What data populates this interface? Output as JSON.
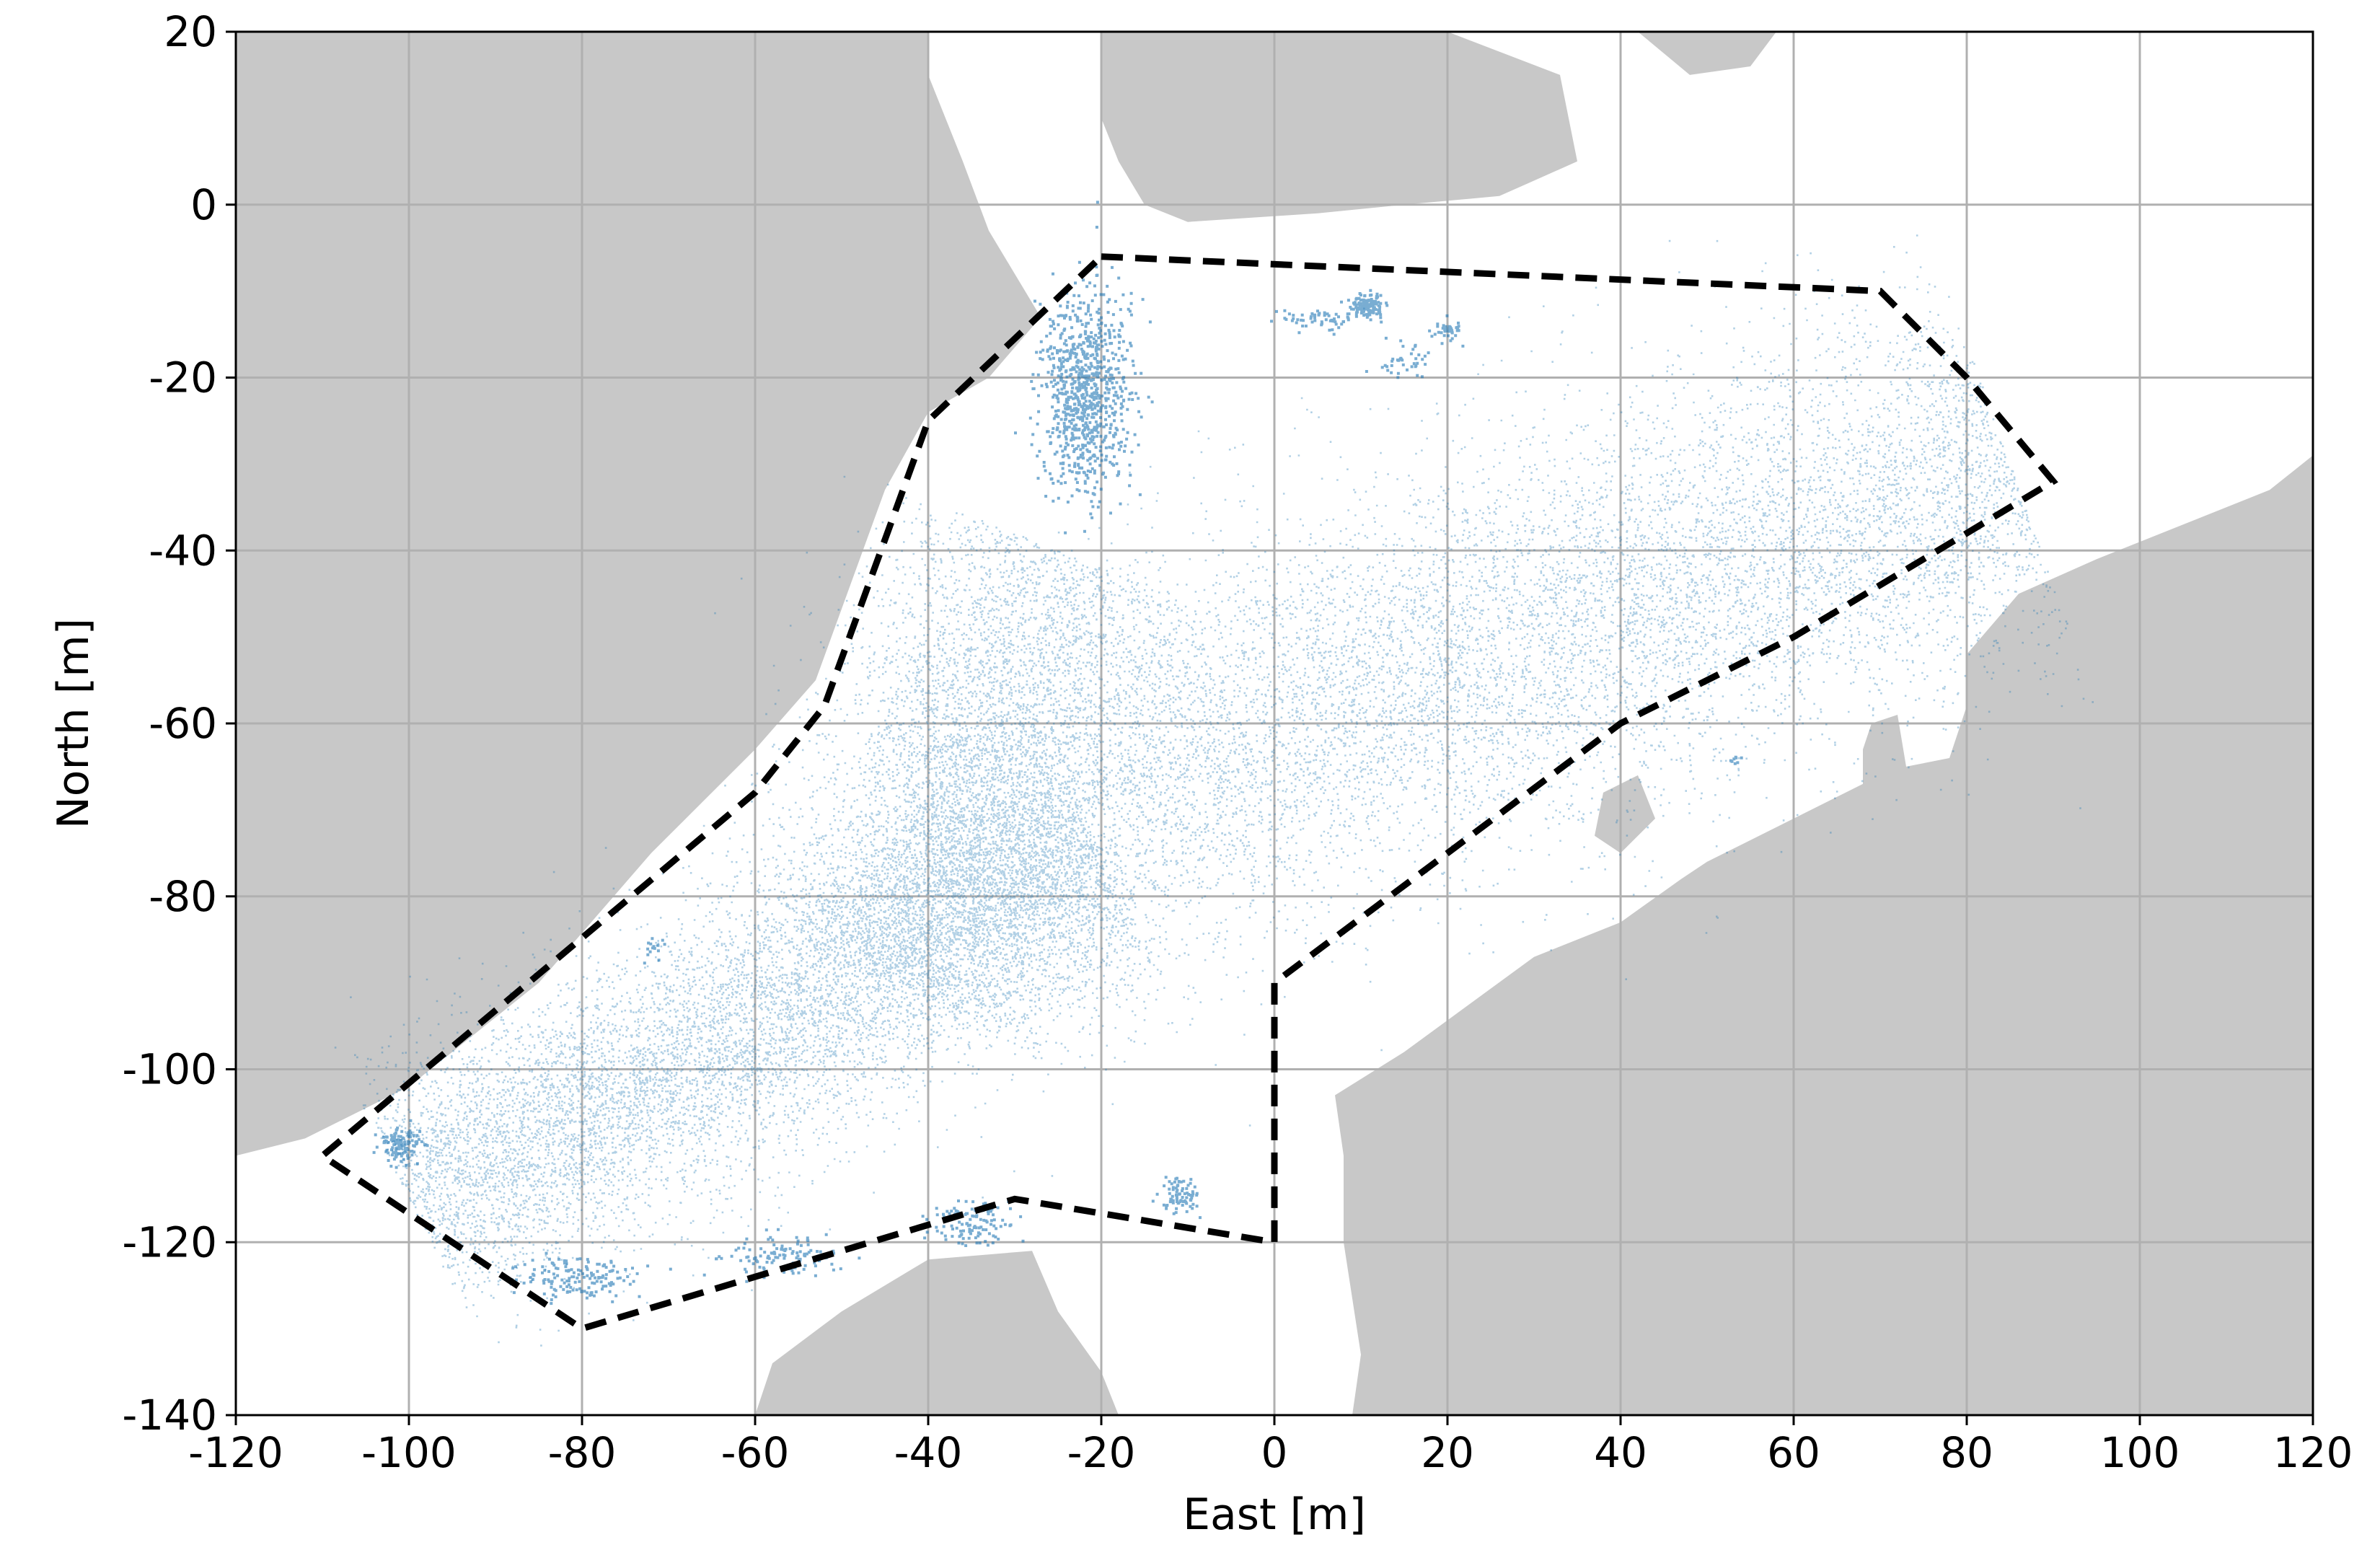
{
  "chart_data": {
    "type": "scatter",
    "xlabel": "East [m]",
    "ylabel": "North [m]",
    "xlim": [
      -120,
      120
    ],
    "ylim": [
      -140,
      20
    ],
    "xticks": [
      -120,
      -100,
      -80,
      -60,
      -40,
      -20,
      0,
      20,
      40,
      60,
      80,
      100,
      120
    ],
    "yticks": [
      20,
      0,
      -20,
      -40,
      -60,
      -80,
      -100,
      -120,
      -140
    ],
    "grid": true,
    "colors": {
      "points": "#1f77b4",
      "land": "#c8c8c8",
      "boundary": "#000000",
      "grid": "#b0b0b0"
    },
    "boundary_polygon": [
      [
        -20,
        -6
      ],
      [
        70,
        -10
      ],
      [
        80,
        -20
      ],
      [
        90,
        -32
      ],
      [
        60,
        -50
      ],
      [
        40,
        -60
      ],
      [
        0,
        -90
      ],
      [
        0,
        -120
      ],
      [
        -30,
        -115
      ],
      [
        -80,
        -130
      ],
      [
        -110,
        -110
      ],
      [
        -60,
        -68
      ],
      [
        -52,
        -58
      ],
      [
        -40,
        -25
      ],
      [
        -20,
        -6
      ]
    ],
    "land_regions": [
      {
        "name": "west-land",
        "points": [
          [
            -120,
            20
          ],
          [
            -40,
            20
          ],
          [
            -40,
            15
          ],
          [
            -36,
            5
          ],
          [
            -33,
            -3
          ],
          [
            -30,
            -8
          ],
          [
            -27,
            -13
          ],
          [
            -33,
            -20
          ],
          [
            -40,
            -24
          ],
          [
            -45,
            -33
          ],
          [
            -53,
            -55
          ],
          [
            -60,
            -63
          ],
          [
            -72,
            -75
          ],
          [
            -85,
            -90
          ],
          [
            -100,
            -102
          ],
          [
            -112,
            -108
          ],
          [
            -120,
            -110
          ]
        ]
      },
      {
        "name": "north-land",
        "points": [
          [
            -20,
            20
          ],
          [
            20,
            20
          ],
          [
            33,
            15
          ],
          [
            35,
            5
          ],
          [
            26,
            1
          ],
          [
            15,
            0
          ],
          [
            5,
            -1
          ],
          [
            -10,
            -2
          ],
          [
            -15,
            0
          ],
          [
            -18,
            5
          ],
          [
            -20,
            10
          ]
        ]
      },
      {
        "name": "north-east-land",
        "points": [
          [
            42,
            20
          ],
          [
            58,
            20
          ],
          [
            55,
            16
          ],
          [
            48,
            15
          ]
        ]
      },
      {
        "name": "east-land",
        "points": [
          [
            120,
            -29
          ],
          [
            120,
            -140
          ],
          [
            9,
            -140
          ],
          [
            10,
            -133
          ],
          [
            8,
            -120
          ],
          [
            8,
            -110
          ],
          [
            7,
            -103
          ],
          [
            15,
            -98
          ],
          [
            30,
            -87
          ],
          [
            40,
            -83
          ],
          [
            47,
            -78
          ],
          [
            50,
            -76
          ],
          [
            60,
            -71
          ],
          [
            68,
            -67
          ],
          [
            68,
            -63
          ],
          [
            69,
            -60
          ],
          [
            72,
            -59
          ],
          [
            73,
            -65
          ],
          [
            78,
            -64
          ],
          [
            80,
            -58
          ],
          [
            80,
            -52
          ],
          [
            86,
            -45
          ],
          [
            95,
            -41
          ],
          [
            105,
            -37
          ],
          [
            115,
            -33
          ]
        ]
      },
      {
        "name": "east-inlet",
        "points": [
          [
            38,
            -68
          ],
          [
            42,
            -66
          ],
          [
            44,
            -71
          ],
          [
            40,
            -75
          ],
          [
            37,
            -73
          ]
        ]
      },
      {
        "name": "south-land",
        "points": [
          [
            -60,
            -140
          ],
          [
            -18,
            -140
          ],
          [
            -20,
            -135
          ],
          [
            -25,
            -128
          ],
          [
            -28,
            -121
          ],
          [
            -40,
            -122
          ],
          [
            -50,
            -128
          ],
          [
            -58,
            -134
          ]
        ]
      }
    ],
    "point_clusters": [
      {
        "center": [
          -22,
          -22
        ],
        "spread": [
          2.5,
          6
        ],
        "count": 900
      },
      {
        "center": [
          10.5,
          -11.5
        ],
        "spread": [
          1.0,
          0.7
        ],
        "count": 140
      },
      {
        "center": [
          5,
          -13
        ],
        "spread": [
          2.5,
          0.6
        ],
        "count": 60
      },
      {
        "center": [
          15,
          -18
        ],
        "spread": [
          1.5,
          1.0
        ],
        "count": 40
      },
      {
        "center": [
          20,
          -14.5
        ],
        "spread": [
          0.8,
          0.6
        ],
        "count": 40
      },
      {
        "center": [
          -101,
          -108.5
        ],
        "spread": [
          1.2,
          1.0
        ],
        "count": 120
      },
      {
        "center": [
          -81,
          -124
        ],
        "spread": [
          3,
          1.2
        ],
        "count": 150
      },
      {
        "center": [
          -57,
          -121.5
        ],
        "spread": [
          3,
          1.2
        ],
        "count": 110
      },
      {
        "center": [
          -35,
          -117.5
        ],
        "spread": [
          2.5,
          1.4
        ],
        "count": 110
      },
      {
        "center": [
          -11,
          -114.5
        ],
        "spread": [
          1.2,
          1.0
        ],
        "count": 80
      },
      {
        "center": [
          -72,
          -86
        ],
        "spread": [
          0.8,
          0.8
        ],
        "count": 15
      },
      {
        "center": [
          53,
          -64
        ],
        "spread": [
          0.4,
          0.4
        ],
        "count": 8
      }
    ],
    "point_bands": [
      {
        "from": [
          -100,
          -115
        ],
        "to": [
          -20,
          -75
        ],
        "width": 14,
        "count": 9000
      },
      {
        "from": [
          -40,
          -75
        ],
        "to": [
          85,
          -30
        ],
        "width": 22,
        "count": 11000
      },
      {
        "from": [
          -45,
          -90
        ],
        "to": [
          -25,
          -40
        ],
        "width": 18,
        "count": 4500
      }
    ]
  }
}
